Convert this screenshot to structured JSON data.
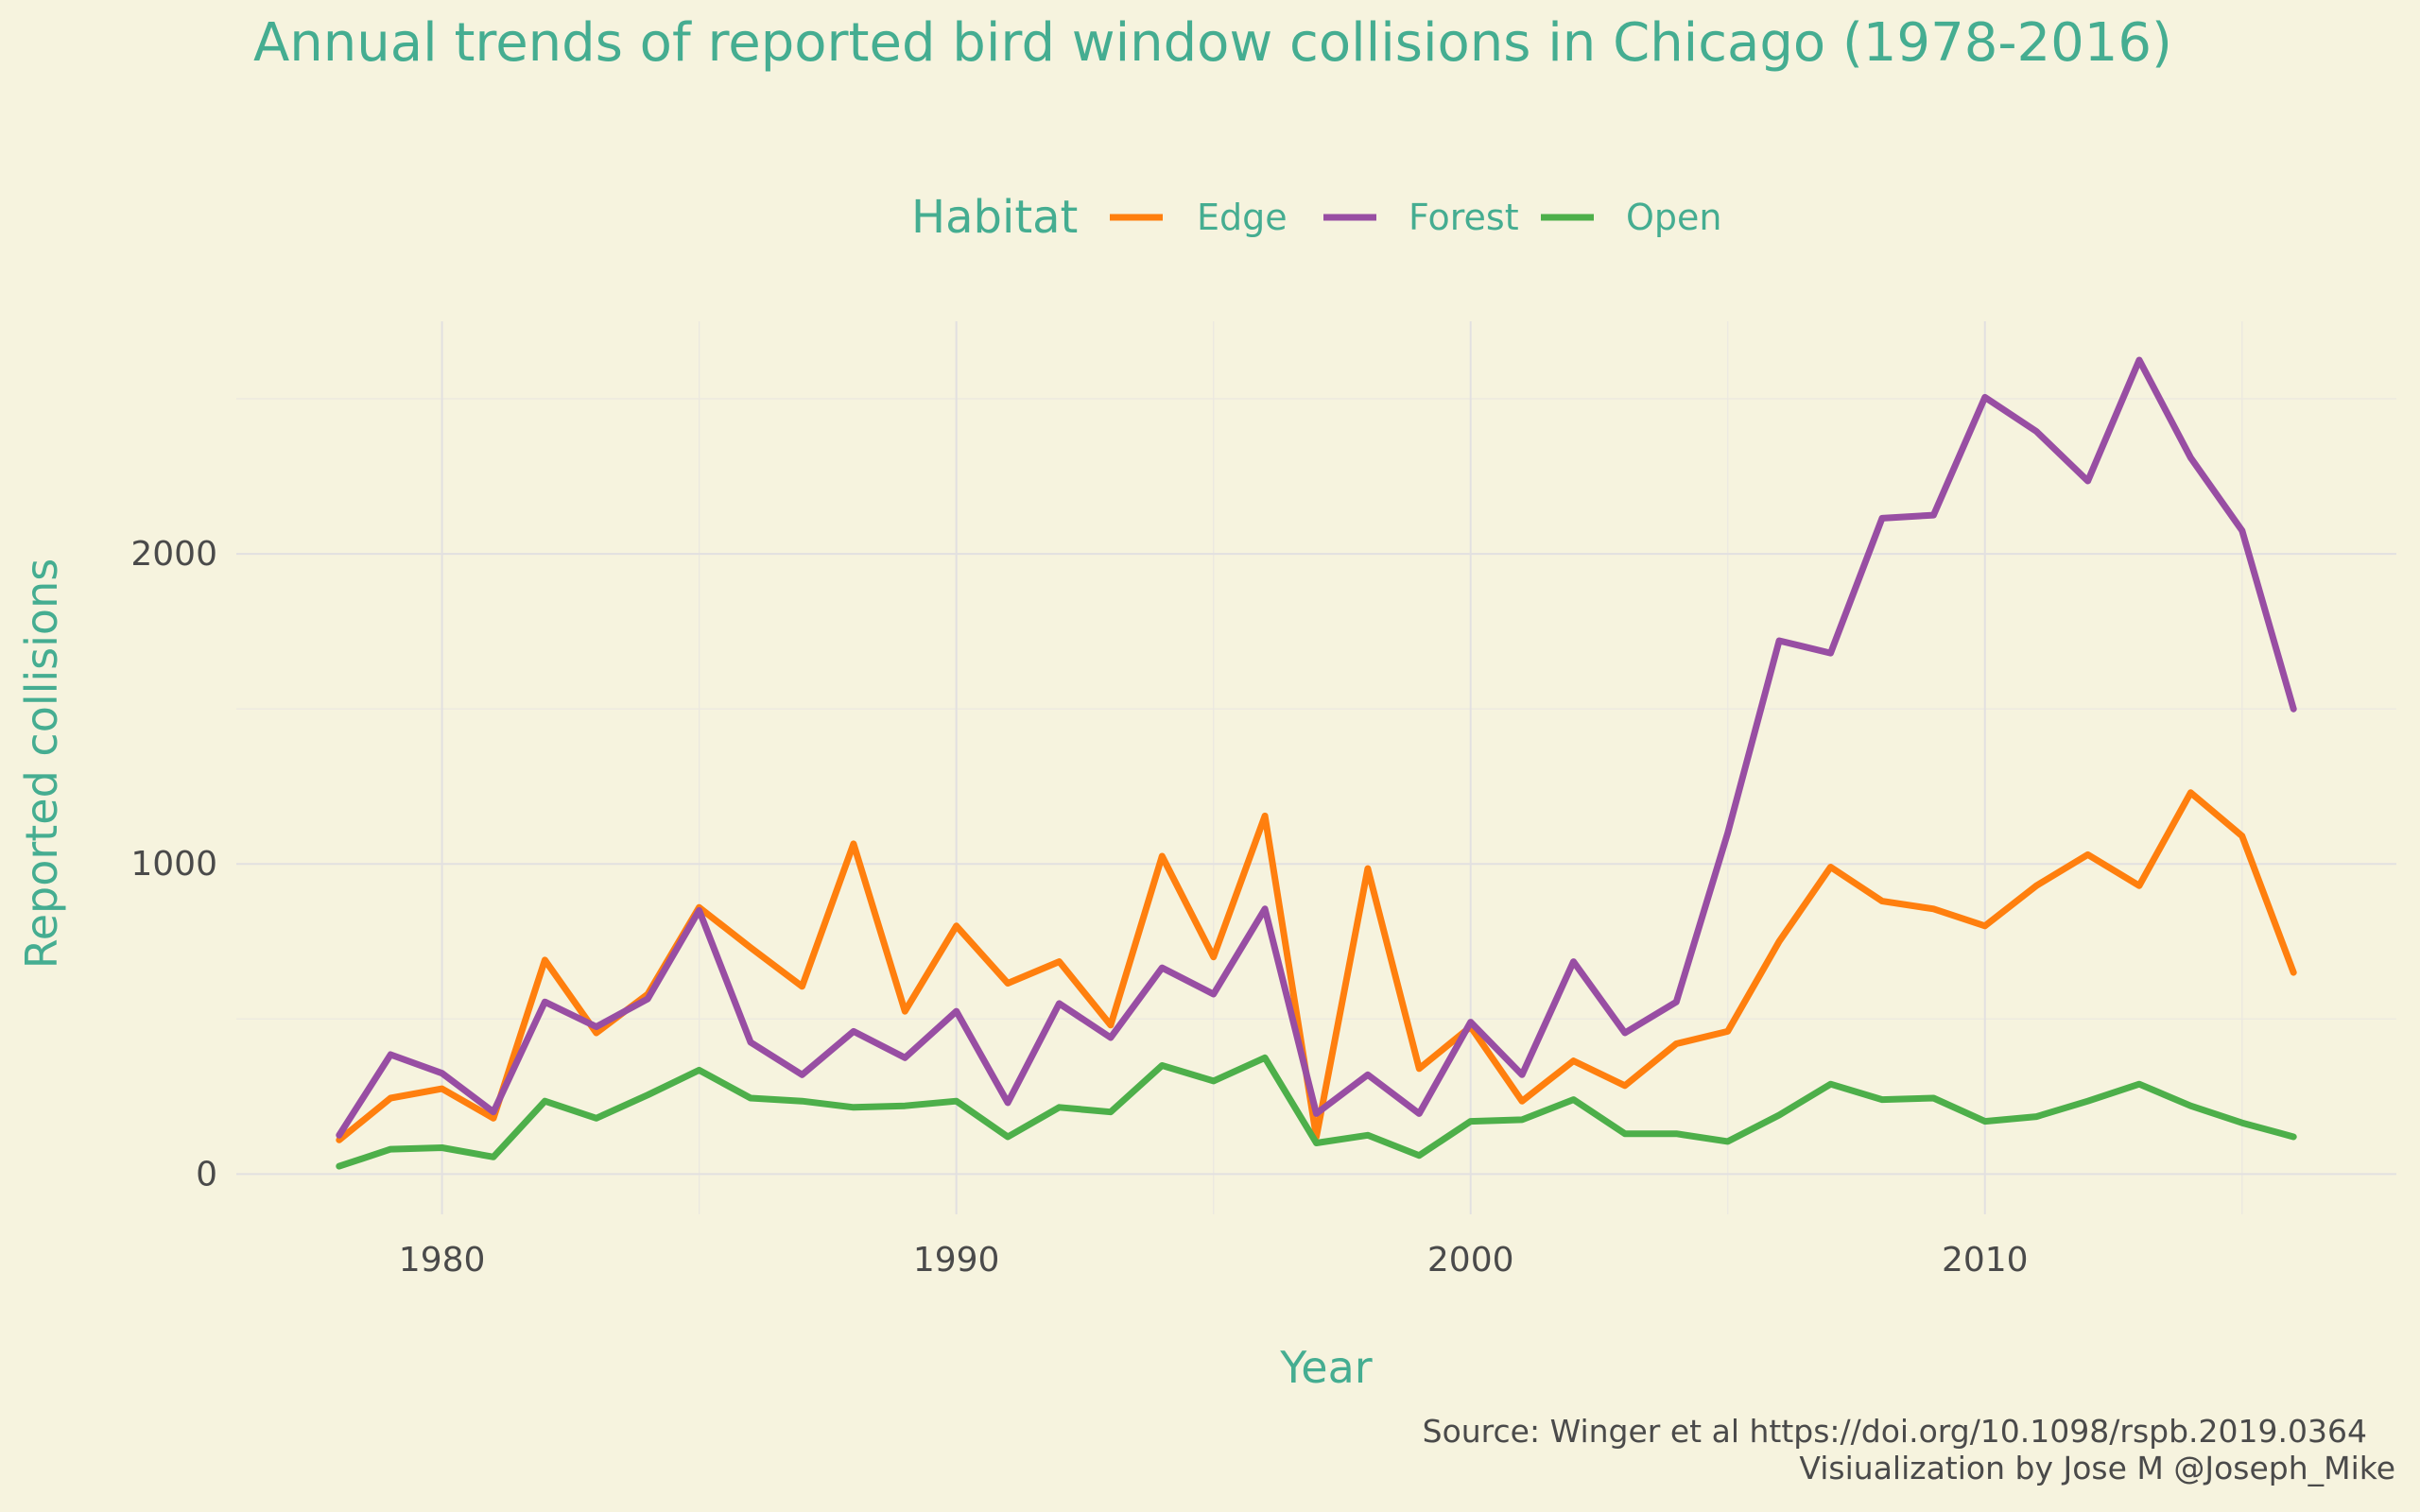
{
  "title": "Annual trends of reported bird window collisions in Chicago (1978-2016)",
  "legend": {
    "title": "Habitat",
    "placement": "top"
  },
  "caption": {
    "source": "Source:  Winger et al https://doi.org/10.1098/rspb.2019.0364",
    "credit": "Visiualization by Jose M @Joseph_Mike"
  },
  "chart_data": {
    "type": "line",
    "title": "Annual trends of reported bird window collisions in Chicago (1978-2016)",
    "xlabel": "Year",
    "ylabel": "Reported collisions",
    "xlim": [
      1976,
      2018
    ],
    "ylim": [
      -130,
      2750
    ],
    "x_ticks": [
      1980,
      1990,
      2000,
      2010
    ],
    "y_ticks": [
      0,
      1000,
      2000
    ],
    "x_tick_labels": [
      "1980",
      "1990",
      "2000",
      "2010"
    ],
    "y_tick_labels": [
      "0",
      "1000",
      "2000"
    ],
    "grid": true,
    "x": [
      1978,
      1979,
      1980,
      1981,
      1982,
      1983,
      1984,
      1985,
      1986,
      1987,
      1988,
      1989,
      1990,
      1991,
      1992,
      1993,
      1994,
      1995,
      1996,
      1997,
      1998,
      1999,
      2000,
      2001,
      2002,
      2003,
      2004,
      2005,
      2006,
      2007,
      2008,
      2009,
      2010,
      2011,
      2012,
      2013,
      2014,
      2015,
      2016
    ],
    "series": [
      {
        "name": "Edge",
        "color": "#ff7f0e",
        "values": [
          110,
          245,
          275,
          180,
          690,
          455,
          580,
          860,
          730,
          605,
          1065,
          525,
          800,
          615,
          685,
          480,
          1025,
          700,
          1155,
          120,
          985,
          340,
          475,
          235,
          365,
          285,
          420,
          460,
          750,
          990,
          880,
          855,
          800,
          930,
          1030,
          930,
          1230,
          1090,
          650
        ]
      },
      {
        "name": "Forest",
        "color": "#984ea3",
        "values": [
          125,
          385,
          325,
          200,
          555,
          475,
          565,
          850,
          425,
          320,
          460,
          375,
          525,
          230,
          550,
          440,
          665,
          580,
          855,
          195,
          320,
          195,
          490,
          320,
          685,
          455,
          555,
          1100,
          1720,
          1680,
          2115,
          2125,
          2505,
          2395,
          2235,
          2625,
          2310,
          2075,
          1500
        ]
      },
      {
        "name": "Open",
        "color": "#4daf4a",
        "values": [
          25,
          80,
          85,
          55,
          235,
          180,
          255,
          335,
          245,
          235,
          215,
          220,
          235,
          120,
          215,
          200,
          350,
          300,
          375,
          100,
          125,
          60,
          170,
          175,
          240,
          130,
          130,
          105,
          190,
          290,
          240,
          245,
          170,
          185,
          235,
          290,
          220,
          165,
          120
        ]
      }
    ]
  }
}
